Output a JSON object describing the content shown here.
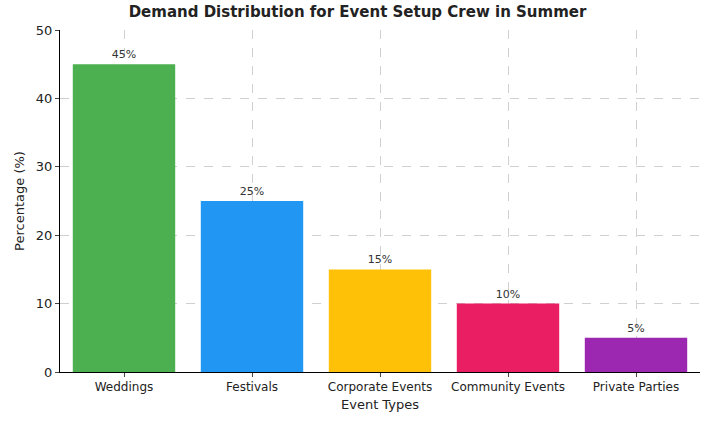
{
  "chart_data": {
    "type": "bar",
    "title": "Demand Distribution for Event Setup Crew in Summer",
    "x_label": "Event Types",
    "y_label": "Percentage (%)",
    "categories": [
      "Weddings",
      "Festivals",
      "Corporate Events",
      "Community Events",
      "Private Parties"
    ],
    "values": [
      45,
      25,
      15,
      10,
      5
    ],
    "value_labels": [
      "45%",
      "25%",
      "15%",
      "10%",
      "5%"
    ],
    "colors": [
      "#4caf50",
      "#2196f3",
      "#ffc107",
      "#e91e63",
      "#9c27b0"
    ],
    "ylim": [
      0,
      50
    ],
    "yticks": [
      0,
      10,
      20,
      30,
      40,
      50
    ],
    "grid": true,
    "data_labels": true
  }
}
